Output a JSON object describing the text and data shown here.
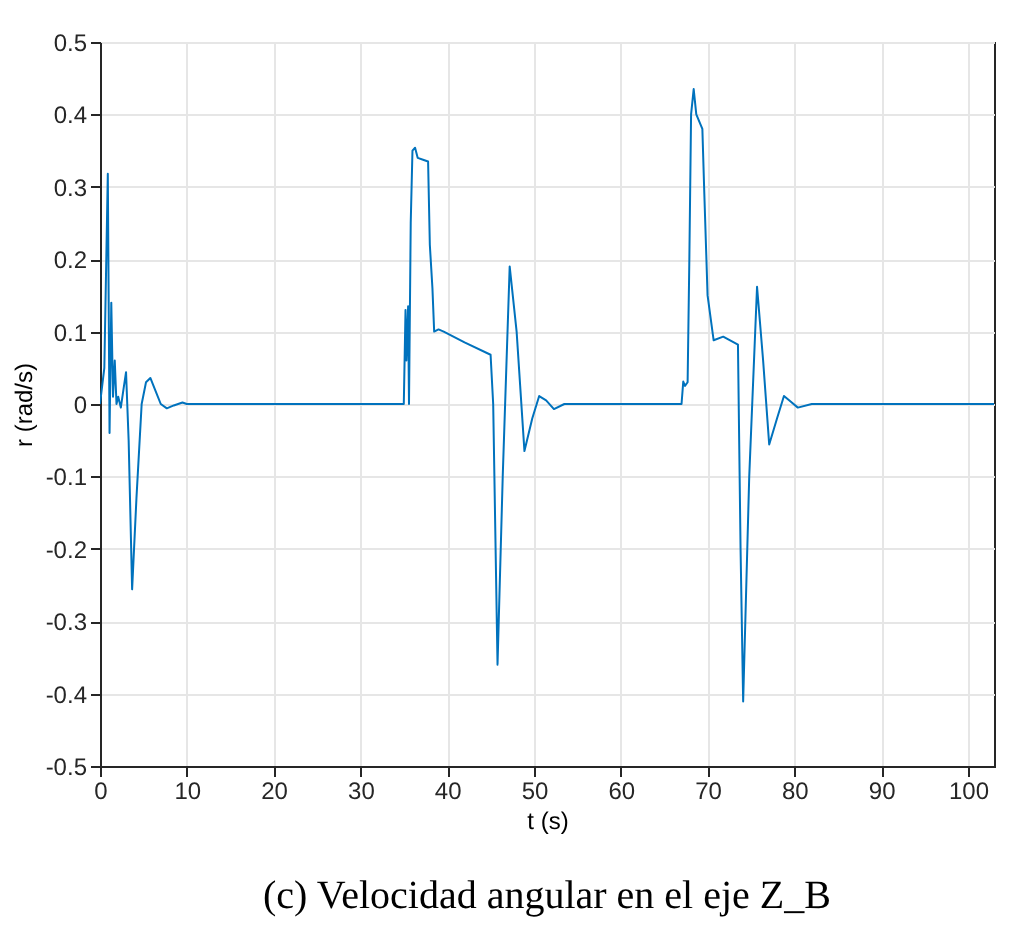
{
  "chart_data": {
    "type": "line",
    "title": "(c) Velocidad angular en el eje Z_B",
    "xlabel": "t (s)",
    "ylabel": "r (rad/s)",
    "x": [
      0,
      0.5,
      0.9,
      1.1,
      1.3,
      1.5,
      1.7,
      1.9,
      2.1,
      2.4,
      2.7,
      3.0,
      3.3,
      3.7,
      4.2,
      4.8,
      5.3,
      5.8,
      6.5,
      7.0,
      7.7,
      8.5,
      9.5,
      10,
      20,
      30,
      35.0,
      35.2,
      35.3,
      35.5,
      35.6,
      35.8,
      36.0,
      36.3,
      36.6,
      37.3,
      37.8,
      38.0,
      38.3,
      38.5,
      39.0,
      39.6,
      42.0,
      45.0,
      45.3,
      45.8,
      46.4,
      47.2,
      48.0,
      48.9,
      49.8,
      50.6,
      51.4,
      52.3,
      53.5,
      55,
      60,
      67.0,
      67.2,
      67.4,
      67.7,
      67.9,
      68.1,
      68.4,
      68.7,
      69.4,
      69.6,
      70.0,
      70.7,
      71.8,
      73.5,
      73.8,
      74.1,
      74.8,
      75.7,
      76.4,
      77.1,
      78.0,
      78.8,
      79.6,
      80.4,
      82,
      90,
      103
    ],
    "series": [
      {
        "color": "#0072bd",
        "values": [
          0,
          0.05,
          0.318,
          -0.04,
          0.14,
          0.01,
          0.06,
          0.0,
          0.01,
          -0.005,
          0.02,
          0.044,
          -0.05,
          -0.256,
          -0.13,
          0.0,
          0.03,
          0.036,
          0.015,
          0.0,
          -0.006,
          -0.002,
          0.002,
          0,
          0,
          0,
          0,
          0.13,
          0.06,
          0.135,
          0,
          0.25,
          0.35,
          0.354,
          0.34,
          0.337,
          0.335,
          0.22,
          0.16,
          0.1,
          0.103,
          0.1,
          0.085,
          0.068,
          0.0,
          -0.36,
          -0.1,
          0.19,
          0.1,
          -0.065,
          -0.02,
          0.011,
          0.005,
          -0.007,
          0,
          0,
          0,
          0,
          0.031,
          0.025,
          0.03,
          0.2,
          0.4,
          0.435,
          0.4,
          0.38,
          0.3,
          0.15,
          0.088,
          0.093,
          0.082,
          -0.2,
          -0.411,
          -0.1,
          0.162,
          0.06,
          -0.056,
          -0.02,
          0.011,
          0.003,
          -0.005,
          0,
          0,
          0
        ]
      }
    ],
    "xlim": [
      0,
      103
    ],
    "xticks": [
      0,
      10,
      20,
      30,
      40,
      50,
      60,
      70,
      80,
      90,
      100
    ],
    "ylim": [
      -0.5,
      0.5
    ],
    "yticks": [
      -0.5,
      -0.4,
      -0.3,
      -0.2,
      -0.1,
      0,
      0.1,
      0.2,
      0.3,
      0.4,
      0.5
    ],
    "grid": true
  }
}
